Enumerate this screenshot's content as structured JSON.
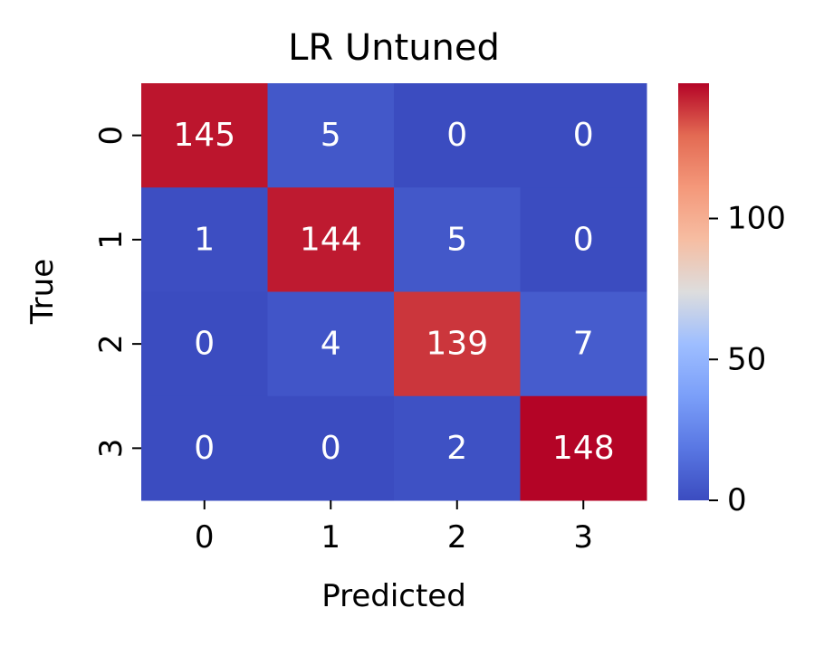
{
  "chart_data": {
    "type": "heatmap",
    "title": "LR Untuned",
    "xlabel": "Predicted",
    "ylabel": "True",
    "x_categories": [
      "0",
      "1",
      "2",
      "3"
    ],
    "y_categories": [
      "0",
      "1",
      "2",
      "3"
    ],
    "matrix": [
      [
        145,
        5,
        0,
        0
      ],
      [
        1,
        144,
        5,
        0
      ],
      [
        0,
        4,
        139,
        7
      ],
      [
        0,
        0,
        2,
        148
      ]
    ],
    "colormap": "coolwarm",
    "vmin": 0,
    "vmax": 148,
    "colorbar": {
      "ticks": [
        0,
        50,
        100
      ],
      "tick_labels": [
        "0",
        "50",
        "100"
      ]
    },
    "annotation_color": "#ffffff",
    "colors": {
      "low": "#3b4cc0",
      "mid": "#dddddd",
      "high": "#b40426"
    }
  }
}
